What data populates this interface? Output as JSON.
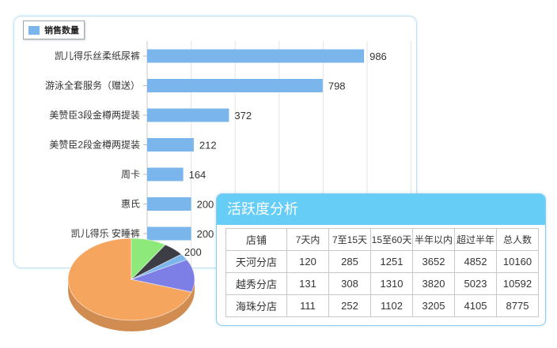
{
  "bar_chart": {
    "chart_data": {
      "type": "bar",
      "orientation": "horizontal",
      "legend": {
        "label": "销售数量",
        "placement": "top-left"
      },
      "categories": [
        "凯儿得乐丝柔纸尿裤",
        "游泳全套服务（赠送）",
        "美赞臣3段金樽两提装",
        "美赞臣2段金樽两提装",
        "周卡",
        "惠氏",
        "凯儿得乐 安睡裤"
      ],
      "values": [
        986,
        798,
        372,
        212,
        164,
        200,
        200
      ],
      "xlim": [
        0,
        1200
      ],
      "grid": true,
      "color": "#7ab6ec"
    }
  },
  "pie_chart": {
    "chart_data": {
      "type": "pie",
      "style": "3d",
      "data_label": "200",
      "slices": [
        {
          "value": 70,
          "color": "#f6a55f"
        },
        {
          "value": 13,
          "color": "#7d7ee6"
        },
        {
          "value": 2.5,
          "color": "#7ab6ec"
        },
        {
          "value": 5.5,
          "color": "#3c3d45"
        },
        {
          "value": 9,
          "color": "#8ee97b"
        }
      ]
    }
  },
  "activity": {
    "title": "活跃度分析",
    "columns": [
      "店铺",
      "7天内",
      "7至15天",
      "15至60天",
      "半年以内",
      "超过半年",
      "总人数"
    ],
    "rows": [
      [
        "天河分店",
        "120",
        "285",
        "1251",
        "3652",
        "4852",
        "10160"
      ],
      [
        "越秀分店",
        "131",
        "308",
        "1310",
        "3820",
        "5023",
        "10592"
      ],
      [
        "海珠分店",
        "111",
        "252",
        "1102",
        "3205",
        "4105",
        "8775"
      ]
    ]
  }
}
